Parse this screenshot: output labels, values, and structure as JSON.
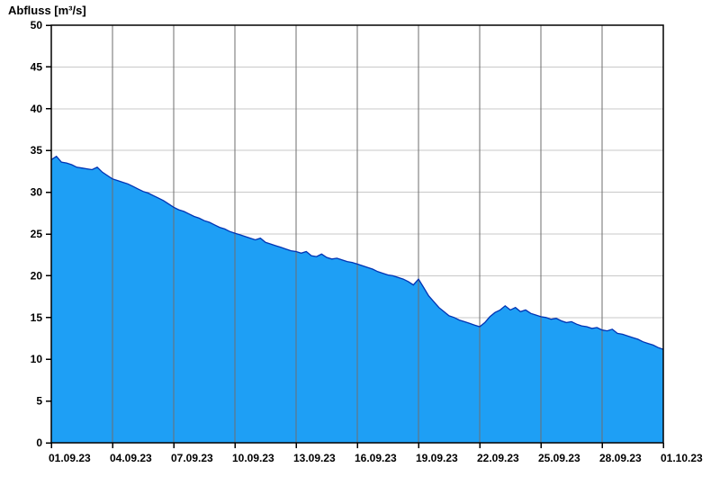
{
  "chart_data": {
    "type": "area",
    "title": "Abfluss [m³/s]",
    "xlabel": "",
    "ylabel": "",
    "xlim": [
      0,
      30
    ],
    "ylim": [
      0,
      50
    ],
    "grid": true,
    "x_tick_days": [
      0,
      3,
      6,
      9,
      12,
      15,
      18,
      21,
      24,
      27,
      30
    ],
    "x_tick_labels": [
      "01.09.23",
      "04.09.23",
      "07.09.23",
      "10.09.23",
      "13.09.23",
      "16.09.23",
      "19.09.23",
      "22.09.23",
      "25.09.23",
      "28.09.23",
      "01.10.23"
    ],
    "y_ticks": [
      0,
      5,
      10,
      15,
      20,
      25,
      30,
      35,
      40,
      45,
      50
    ],
    "series": [
      {
        "name": "Abfluss",
        "unit": "m³/s",
        "x_start": 0,
        "x_step": 0.25,
        "values": [
          33.9,
          34.3,
          33.6,
          33.5,
          33.3,
          33.0,
          32.9,
          32.8,
          32.7,
          33.0,
          32.4,
          32.0,
          31.6,
          31.4,
          31.2,
          31.0,
          30.7,
          30.4,
          30.1,
          29.9,
          29.6,
          29.3,
          29.0,
          28.6,
          28.2,
          27.9,
          27.7,
          27.4,
          27.1,
          26.9,
          26.6,
          26.4,
          26.1,
          25.8,
          25.6,
          25.3,
          25.1,
          24.9,
          24.7,
          24.5,
          24.3,
          24.5,
          24.0,
          23.8,
          23.6,
          23.4,
          23.2,
          23.0,
          22.9,
          22.7,
          22.9,
          22.4,
          22.3,
          22.6,
          22.2,
          22.0,
          22.1,
          21.9,
          21.7,
          21.6,
          21.4,
          21.2,
          21.0,
          20.8,
          20.5,
          20.3,
          20.1,
          20.0,
          19.8,
          19.6,
          19.3,
          18.9,
          19.6,
          18.6,
          17.6,
          16.9,
          16.2,
          15.7,
          15.2,
          15.0,
          14.7,
          14.5,
          14.3,
          14.1,
          13.9,
          14.4,
          15.1,
          15.6,
          15.9,
          16.4,
          15.9,
          16.2,
          15.7,
          15.9,
          15.5,
          15.3,
          15.1,
          15.0,
          14.8,
          14.9,
          14.6,
          14.4,
          14.5,
          14.2,
          14.0,
          13.9,
          13.7,
          13.8,
          13.5,
          13.4,
          13.6,
          13.1,
          13.0,
          12.8,
          12.6,
          12.4,
          12.1,
          11.9,
          11.7,
          11.4,
          11.2
        ]
      }
    ],
    "colors": {
      "area_fill": "#1e9ff5",
      "line": "#0033b3",
      "h_grid": "#c8c8c8",
      "v_grid": "#6e6e6e",
      "axis": "#000000",
      "background": "#ffffff"
    },
    "legend": "none"
  }
}
